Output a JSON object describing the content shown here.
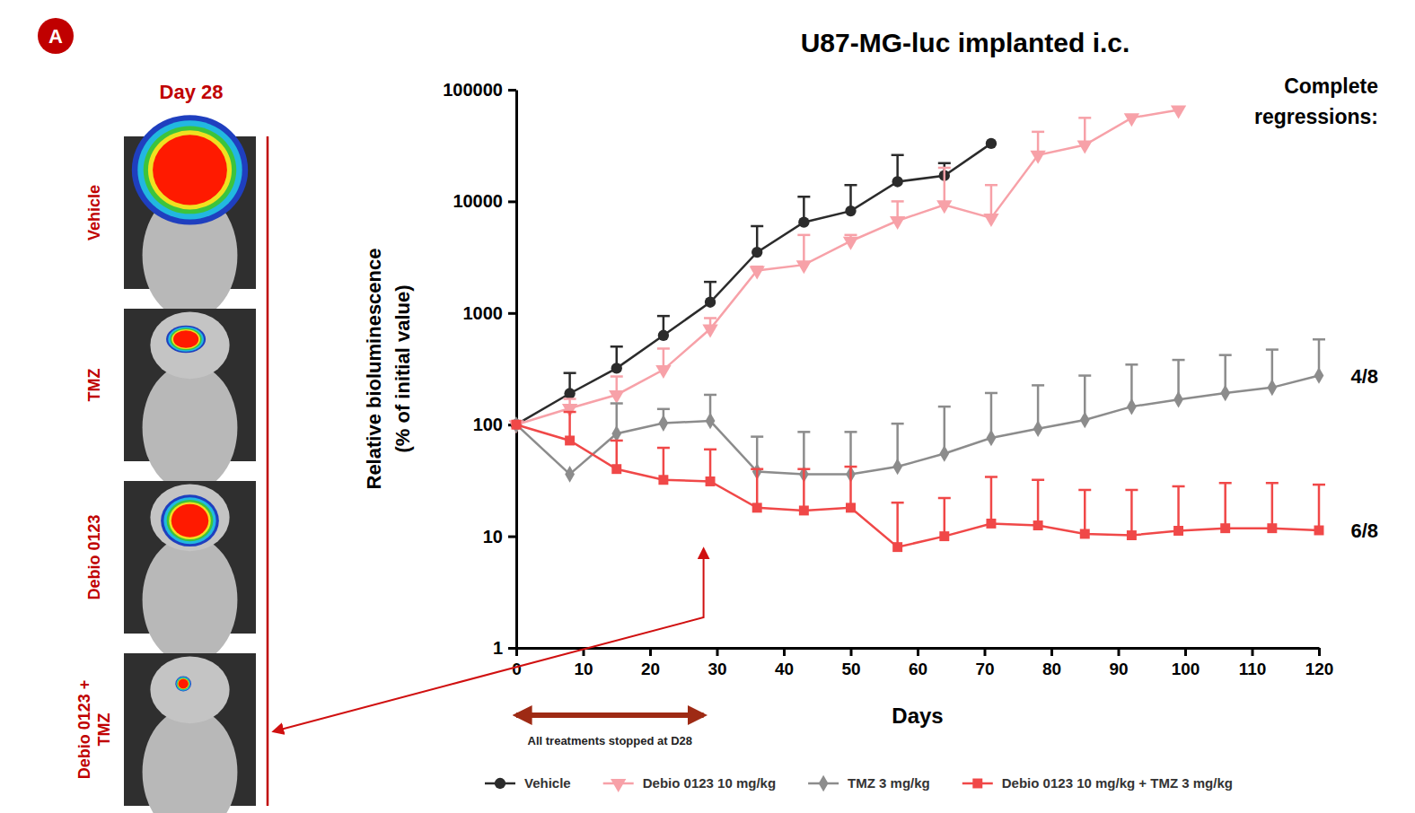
{
  "panel_label": "A",
  "images": {
    "title": "Day 28",
    "labels": [
      "Vehicle",
      "TMZ",
      "Debio 0123",
      "Debio 0123 + TMZ"
    ]
  },
  "chart_data": {
    "type": "line",
    "title": "U87-MG-luc implanted i.c.",
    "x_label": "Days",
    "y_label": "Relative bioluminescence (% of initial value)",
    "x": [
      0,
      8,
      15,
      22,
      29,
      36,
      43,
      50,
      57,
      64,
      71,
      78,
      85,
      92,
      99,
      106,
      113,
      120
    ],
    "xlim": [
      0,
      120
    ],
    "xticks": [
      0,
      10,
      20,
      30,
      40,
      50,
      60,
      70,
      80,
      90,
      100,
      110,
      120
    ],
    "ylim": [
      1,
      100000
    ],
    "yticks": [
      1,
      10,
      100,
      1000,
      10000,
      100000
    ],
    "log": "y",
    "grid": false,
    "legend": "bottom",
    "series": [
      {
        "name": "Vehicle",
        "color": "#2b2b2b",
        "marker": "circle",
        "values": [
          100,
          190,
          320,
          630,
          1250,
          3500,
          6500,
          8200,
          15000,
          17000,
          33000,
          null,
          null,
          null,
          null,
          null,
          null,
          null
        ],
        "errors": [
          null,
          100,
          180,
          310,
          650,
          2500,
          4500,
          5800,
          11000,
          5000,
          null,
          null,
          null,
          null,
          null,
          null,
          null,
          null
        ]
      },
      {
        "name": "Debio 0123 10 mg/kg",
        "color": "#f7a1a8",
        "marker": "triangle-down",
        "values": [
          100,
          140,
          185,
          310,
          720,
          2400,
          2700,
          4400,
          6700,
          9300,
          7100,
          26000,
          32000,
          56000,
          66000,
          null,
          null,
          null
        ],
        "errors": [
          null,
          30,
          85,
          170,
          180,
          200,
          2300,
          600,
          3300,
          10700,
          6900,
          16000,
          24000,
          null,
          null,
          null,
          null,
          null
        ]
      },
      {
        "name": "TMZ 3 mg/kg",
        "color": "#8c8c8c",
        "marker": "diamond",
        "values": [
          100,
          36,
          83,
          103,
          108,
          38,
          36,
          36,
          42,
          55,
          76,
          92,
          110,
          145,
          168,
          192,
          215,
          275
        ],
        "errors": [
          null,
          null,
          72,
          35,
          77,
          40,
          50,
          50,
          60,
          90,
          116,
          133,
          165,
          200,
          212,
          228,
          255,
          305
        ]
      },
      {
        "name": "Debio 0123 10 mg/kg + TMZ 3 mg/kg",
        "color": "#f04848",
        "marker": "square",
        "values": [
          100,
          72,
          40,
          32,
          31,
          18,
          17,
          18,
          8,
          10,
          13,
          12.5,
          10.5,
          10.2,
          11.2,
          11.8,
          11.8,
          11.3
        ],
        "errors": [
          null,
          58,
          32,
          30,
          29,
          22,
          23,
          24,
          12,
          12,
          21,
          19.5,
          15.5,
          15.8,
          16.8,
          18.2,
          18.2,
          17.7
        ]
      }
    ],
    "annotations": [
      {
        "text": "All treatments stopped at D28",
        "x": [
          0,
          28
        ]
      }
    ],
    "side_note": {
      "title": "Complete regressions:",
      "labels": [
        {
          "series": 2,
          "text": "4/8"
        },
        {
          "series": 3,
          "text": "6/8"
        }
      ]
    }
  }
}
